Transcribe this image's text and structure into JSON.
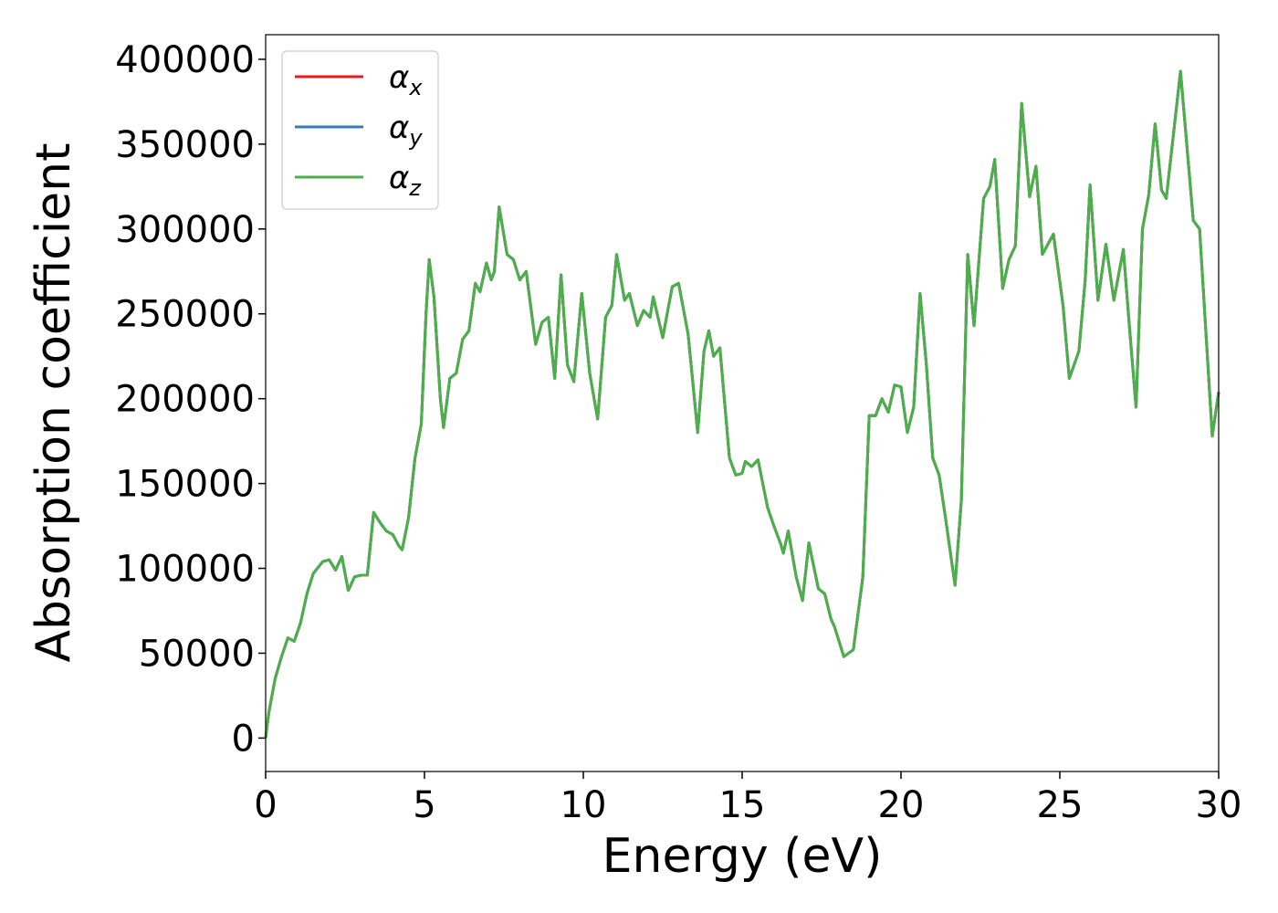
{
  "chart_data": {
    "type": "line",
    "xlabel": "Energy (eV)",
    "ylabel": "Absorption coefficient",
    "x": [
      0,
      0.1,
      0.3,
      0.5,
      0.7,
      0.9,
      1.1,
      1.3,
      1.5,
      1.8,
      2.0,
      2.2,
      2.4,
      2.6,
      2.8,
      3.0,
      3.2,
      3.4,
      3.6,
      3.8,
      4.0,
      4.2,
      4.3,
      4.5,
      4.7,
      4.9,
      5.05,
      5.15,
      5.3,
      5.5,
      5.6,
      5.8,
      6.0,
      6.2,
      6.4,
      6.6,
      6.75,
      6.95,
      7.1,
      7.2,
      7.35,
      7.6,
      7.8,
      8.0,
      8.2,
      8.5,
      8.7,
      8.9,
      9.1,
      9.3,
      9.5,
      9.7,
      9.95,
      10.2,
      10.45,
      10.7,
      10.9,
      11.05,
      11.3,
      11.45,
      11.7,
      11.9,
      12.1,
      12.2,
      12.5,
      12.8,
      13.0,
      13.3,
      13.6,
      13.8,
      13.95,
      14.1,
      14.3,
      14.6,
      14.8,
      15.0,
      15.1,
      15.3,
      15.5,
      15.8,
      16.0,
      16.2,
      16.3,
      16.45,
      16.7,
      16.9,
      17.1,
      17.4,
      17.6,
      17.8,
      17.9,
      18.2,
      18.5,
      18.8,
      19.0,
      19.2,
      19.4,
      19.6,
      19.8,
      20.0,
      20.2,
      20.4,
      20.6,
      20.8,
      21.0,
      21.2,
      21.4,
      21.7,
      21.9,
      22.1,
      22.3,
      22.6,
      22.8,
      22.95,
      23.2,
      23.4,
      23.6,
      23.8,
      24.05,
      24.25,
      24.45,
      24.8,
      25.1,
      25.3,
      25.6,
      25.8,
      25.95,
      26.2,
      26.45,
      26.7,
      27.0,
      27.2,
      27.4,
      27.6,
      27.8,
      28.0,
      28.2,
      28.35,
      28.8,
      29.2,
      29.4,
      29.8,
      30
    ],
    "series": [
      {
        "name": "αx",
        "color": "#e41a1c",
        "values": [
          0,
          15000,
          35000,
          48000,
          59000,
          57000,
          68000,
          85000,
          97000,
          104000,
          105000,
          99000,
          107000,
          87000,
          95000,
          96000,
          96000,
          133000,
          127000,
          122000,
          120000,
          113000,
          111000,
          130000,
          165000,
          185000,
          250000,
          282000,
          260000,
          200000,
          183000,
          212000,
          215000,
          235000,
          240000,
          268000,
          263000,
          280000,
          270000,
          275000,
          313000,
          285000,
          282000,
          270000,
          275000,
          232000,
          245000,
          248000,
          212000,
          273000,
          220000,
          210000,
          262000,
          215000,
          188000,
          248000,
          255000,
          285000,
          258000,
          262000,
          243000,
          252000,
          248000,
          260000,
          236000,
          266000,
          268000,
          238000,
          180000,
          228000,
          240000,
          225000,
          230000,
          165000,
          155000,
          156000,
          163000,
          160000,
          164000,
          136000,
          125000,
          115000,
          109000,
          122000,
          95000,
          81000,
          115000,
          88000,
          85000,
          70000,
          66000,
          48000,
          52000,
          95000,
          190000,
          190000,
          200000,
          192000,
          208000,
          207000,
          180000,
          195000,
          262000,
          220000,
          165000,
          155000,
          130000,
          90000,
          140000,
          285000,
          243000,
          318000,
          325000,
          341000,
          265000,
          282000,
          290000,
          374000,
          319000,
          337000,
          285000,
          297000,
          255000,
          212000,
          228000,
          270000,
          326000,
          258000,
          291000,
          258000,
          288000,
          240000,
          195000,
          300000,
          320000,
          362000,
          323000,
          318000,
          393000,
          305000,
          300000,
          178000,
          204000
        ]
      },
      {
        "name": "αy",
        "color": "#377eb8",
        "values": [
          0,
          15000,
          35000,
          48000,
          59000,
          57000,
          68000,
          85000,
          97000,
          104000,
          105000,
          99000,
          107000,
          87000,
          95000,
          96000,
          96000,
          133000,
          127000,
          122000,
          120000,
          113000,
          111000,
          130000,
          165000,
          185000,
          250000,
          282000,
          260000,
          200000,
          183000,
          212000,
          215000,
          235000,
          240000,
          268000,
          263000,
          280000,
          270000,
          275000,
          313000,
          285000,
          282000,
          270000,
          275000,
          232000,
          245000,
          248000,
          212000,
          273000,
          220000,
          210000,
          262000,
          215000,
          188000,
          248000,
          255000,
          285000,
          258000,
          262000,
          243000,
          252000,
          248000,
          260000,
          236000,
          266000,
          268000,
          238000,
          180000,
          228000,
          240000,
          225000,
          230000,
          165000,
          155000,
          156000,
          163000,
          160000,
          164000,
          136000,
          125000,
          115000,
          109000,
          122000,
          95000,
          81000,
          115000,
          88000,
          85000,
          70000,
          66000,
          48000,
          52000,
          95000,
          190000,
          190000,
          200000,
          192000,
          208000,
          207000,
          180000,
          195000,
          262000,
          220000,
          165000,
          155000,
          130000,
          90000,
          140000,
          285000,
          243000,
          318000,
          325000,
          341000,
          265000,
          282000,
          290000,
          374000,
          319000,
          337000,
          285000,
          297000,
          255000,
          212000,
          228000,
          270000,
          326000,
          258000,
          291000,
          258000,
          288000,
          240000,
          195000,
          300000,
          320000,
          362000,
          323000,
          318000,
          393000,
          305000,
          300000,
          178000,
          204000
        ]
      },
      {
        "name": "αz",
        "color": "#4daf4a",
        "values": [
          0,
          15000,
          35000,
          48000,
          59000,
          57000,
          68000,
          85000,
          97000,
          104000,
          105000,
          99000,
          107000,
          87000,
          95000,
          96000,
          96000,
          133000,
          127000,
          122000,
          120000,
          113000,
          111000,
          130000,
          165000,
          185000,
          250000,
          282000,
          260000,
          200000,
          183000,
          212000,
          215000,
          235000,
          240000,
          268000,
          263000,
          280000,
          270000,
          275000,
          313000,
          285000,
          282000,
          270000,
          275000,
          232000,
          245000,
          248000,
          212000,
          273000,
          220000,
          210000,
          262000,
          215000,
          188000,
          248000,
          255000,
          285000,
          258000,
          262000,
          243000,
          252000,
          248000,
          260000,
          236000,
          266000,
          268000,
          238000,
          180000,
          228000,
          240000,
          225000,
          230000,
          165000,
          155000,
          156000,
          163000,
          160000,
          164000,
          136000,
          125000,
          115000,
          109000,
          122000,
          95000,
          81000,
          115000,
          88000,
          85000,
          70000,
          66000,
          48000,
          52000,
          95000,
          190000,
          190000,
          200000,
          192000,
          208000,
          207000,
          180000,
          195000,
          262000,
          220000,
          165000,
          155000,
          130000,
          90000,
          140000,
          285000,
          243000,
          318000,
          325000,
          341000,
          265000,
          282000,
          290000,
          374000,
          319000,
          337000,
          285000,
          297000,
          255000,
          212000,
          228000,
          270000,
          326000,
          258000,
          291000,
          258000,
          288000,
          240000,
          195000,
          300000,
          320000,
          362000,
          323000,
          318000,
          393000,
          305000,
          300000,
          178000,
          204000
        ]
      }
    ],
    "xlim": [
      0,
      30
    ],
    "xticks": [
      0,
      5,
      10,
      15,
      20,
      25,
      30
    ],
    "ylim": [
      -19700,
      414500
    ],
    "yticks": [
      0,
      50000,
      100000,
      150000,
      200000,
      250000,
      300000,
      350000,
      400000
    ],
    "legend": "upper left",
    "grid": false
  }
}
